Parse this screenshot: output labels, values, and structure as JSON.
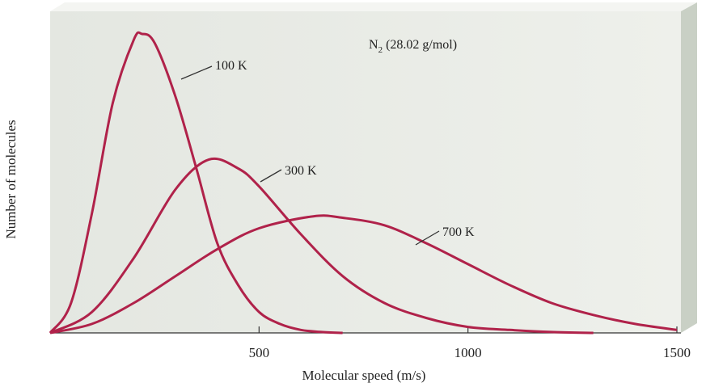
{
  "chart_data": {
    "type": "line",
    "title": "N",
    "title_subscript": "2",
    "title_suffix": " (28.02 g/mol)",
    "xlabel": "Molecular speed (m/s)",
    "ylabel": "Number of molecules",
    "xlim": [
      0,
      1500
    ],
    "xticks": [
      500,
      1000,
      1500
    ],
    "xtick_labels": [
      "500",
      "1000",
      "1500"
    ],
    "grid": false,
    "legend": "none",
    "colors": {
      "curve": "#b0224a",
      "panel": "#e9ebe6",
      "panel_side": "#c6cdc2",
      "panel_top": "#f7f8f5",
      "text": "#222222"
    },
    "series": [
      {
        "name": "100 K",
        "peak_speed": 220,
        "relative_peak_height": 1.0,
        "x": [
          0,
          50,
          100,
          150,
          200,
          220,
          250,
          300,
          350,
          400,
          450,
          500,
          550,
          600,
          650,
          700
        ],
        "y": [
          0,
          0.1,
          0.4,
          0.77,
          0.98,
          1.0,
          0.97,
          0.79,
          0.55,
          0.3,
          0.16,
          0.07,
          0.03,
          0.01,
          0.003,
          0.0
        ]
      },
      {
        "name": "300 K",
        "peak_speed": 380,
        "relative_peak_height": 0.58,
        "x": [
          0,
          100,
          200,
          300,
          380,
          450,
          500,
          600,
          700,
          800,
          900,
          1000,
          1100,
          1200,
          1300
        ],
        "y": [
          0,
          0.07,
          0.25,
          0.48,
          0.58,
          0.55,
          0.49,
          0.33,
          0.19,
          0.1,
          0.05,
          0.02,
          0.01,
          0.003,
          0.0
        ]
      },
      {
        "name": "700 K",
        "peak_speed": 630,
        "relative_peak_height": 0.39,
        "x": [
          0,
          100,
          200,
          300,
          400,
          500,
          630,
          700,
          800,
          900,
          1000,
          1100,
          1200,
          1300,
          1400,
          1500
        ],
        "y": [
          0,
          0.03,
          0.1,
          0.19,
          0.28,
          0.35,
          0.39,
          0.385,
          0.36,
          0.3,
          0.23,
          0.16,
          0.1,
          0.06,
          0.03,
          0.01
        ]
      }
    ]
  }
}
